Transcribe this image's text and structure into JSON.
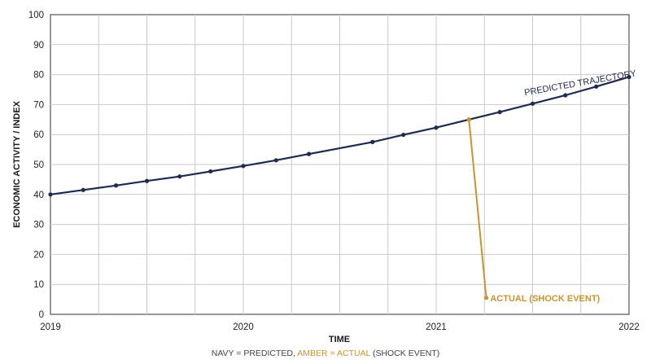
{
  "chart_data": {
    "type": "line",
    "xlabel": "TIME",
    "ylabel": "ECONOMIC ACTIVITY / INDEX",
    "xlim": [
      2019,
      2022
    ],
    "ylim": [
      0,
      100
    ],
    "x_ticks": [
      2019,
      2020,
      2021,
      2022
    ],
    "y_ticks": [
      0,
      10,
      20,
      30,
      40,
      50,
      60,
      70,
      80,
      90,
      100
    ],
    "grid": true,
    "series": [
      {
        "name": "PREDICTED",
        "color": "#1f2b4d",
        "x": [
          2019.0,
          2019.17,
          2019.34,
          2019.5,
          2019.67,
          2019.83,
          2020.0,
          2020.17,
          2020.34,
          2020.67,
          2020.83,
          2021.0,
          2021.17,
          2021.33,
          2021.5,
          2021.67,
          2021.83,
          2022.0
        ],
        "y": [
          40,
          41.5,
          43,
          44.5,
          46,
          47.7,
          49.5,
          51.4,
          53.5,
          57.5,
          59.9,
          62.3,
          65,
          67.5,
          70.3,
          73.1,
          76,
          79.2
        ]
      },
      {
        "name": "ACTUAL (SHOCK EVENT)",
        "color": "#c9942e",
        "x": [
          2021.17,
          2021.26
        ],
        "y": [
          65,
          5.5
        ]
      }
    ],
    "annotations": [
      {
        "text": "PREDICTED TRAJECTORY",
        "x": 2021.46,
        "y": 73,
        "color": "#1f2b4d",
        "rotate": -10
      },
      {
        "text": "ACTUAL (SHOCK EVENT)",
        "x": 2021.28,
        "y": 5.5,
        "color": "#c9942e",
        "rotate": 0
      }
    ]
  },
  "caption": {
    "prefix": "NAVY = PREDICTED, ",
    "amber": "AMBER = ACTUAL",
    "suffix": " (SHOCK EVENT)"
  }
}
